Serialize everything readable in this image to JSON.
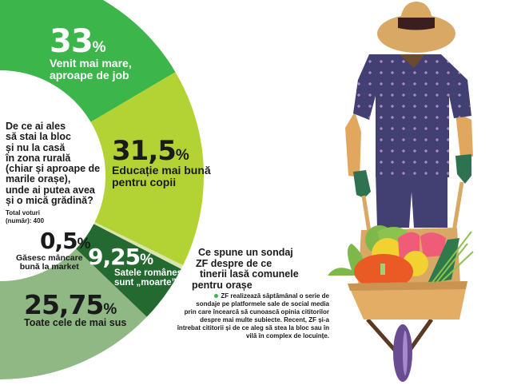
{
  "chart_data": {
    "type": "pie",
    "shape": "half-donut",
    "title": "De ce ai ales să stai la bloc și nu la casă în zona rurală (chiar și aproape de marile orașe), unde ai putea avea și o mică grădină?",
    "note": "Total voturi (număr): 400",
    "unit": "%",
    "slices": [
      {
        "label": "Venit mai mare, aproape de job",
        "value": 33,
        "display": "33",
        "color": "#3cb54a"
      },
      {
        "label": "Educație mai bună pentru copii",
        "value": 31.5,
        "display": "31,5",
        "color": "#b3d334"
      },
      {
        "label": "Găsesc mâncare bună la market",
        "value": 0.5,
        "display": "0,5",
        "color": "#d7e6b0"
      },
      {
        "label": "Satele românești sunt „moarte”",
        "value": 9.25,
        "display": "9,25",
        "color": "#24692f"
      },
      {
        "label": "Toate cele de mai sus",
        "value": 25.75,
        "display": "25,75",
        "color": "#8fb885"
      }
    ]
  },
  "question": {
    "lines": [
      "De ce ai ales",
      "să stai la bloc",
      "și nu la casă",
      "în zona rurală",
      "(chiar și aproape de",
      "marile orașe),",
      "unde ai putea avea",
      "și o mică grădină?"
    ],
    "total_lines": [
      "Total voturi",
      "(număr): 400"
    ]
  },
  "labels": {
    "s33": {
      "num": "33",
      "pct": "%",
      "l1": "Venit mai mare,",
      "l2": "aproape de job"
    },
    "s315": {
      "num": "31,5",
      "pct": "%",
      "l1": "Educație mai bună",
      "l2": "pentru copii"
    },
    "s05": {
      "num": "0,5",
      "pct": "%",
      "l1": "Găsesc mâncare",
      "l2": "bună la market"
    },
    "s925": {
      "num": "9,25",
      "pct": "%",
      "l1": "Satele românești",
      "l2": "sunt „moarte”"
    },
    "s2575": {
      "num": "25,75",
      "pct": "%",
      "l1": "Toate cele de mai sus"
    }
  },
  "article": {
    "headline_lines": [
      "Ce spune un sondaj",
      "ZF despre de ce",
      "tinerii lasă comunele",
      "pentru orașe"
    ],
    "body_lines": [
      "ZF realizează săptămânal o serie de",
      "sondaje pe platformele sale de social media",
      "prin care încearcă să cunoască opinia cititorilor",
      "despre mai multe subiecte. Recent, ZF și-a",
      "întrebat cititorii și de ce aleg să stea la bloc sau în",
      "vilă în complex de locuințe."
    ]
  }
}
